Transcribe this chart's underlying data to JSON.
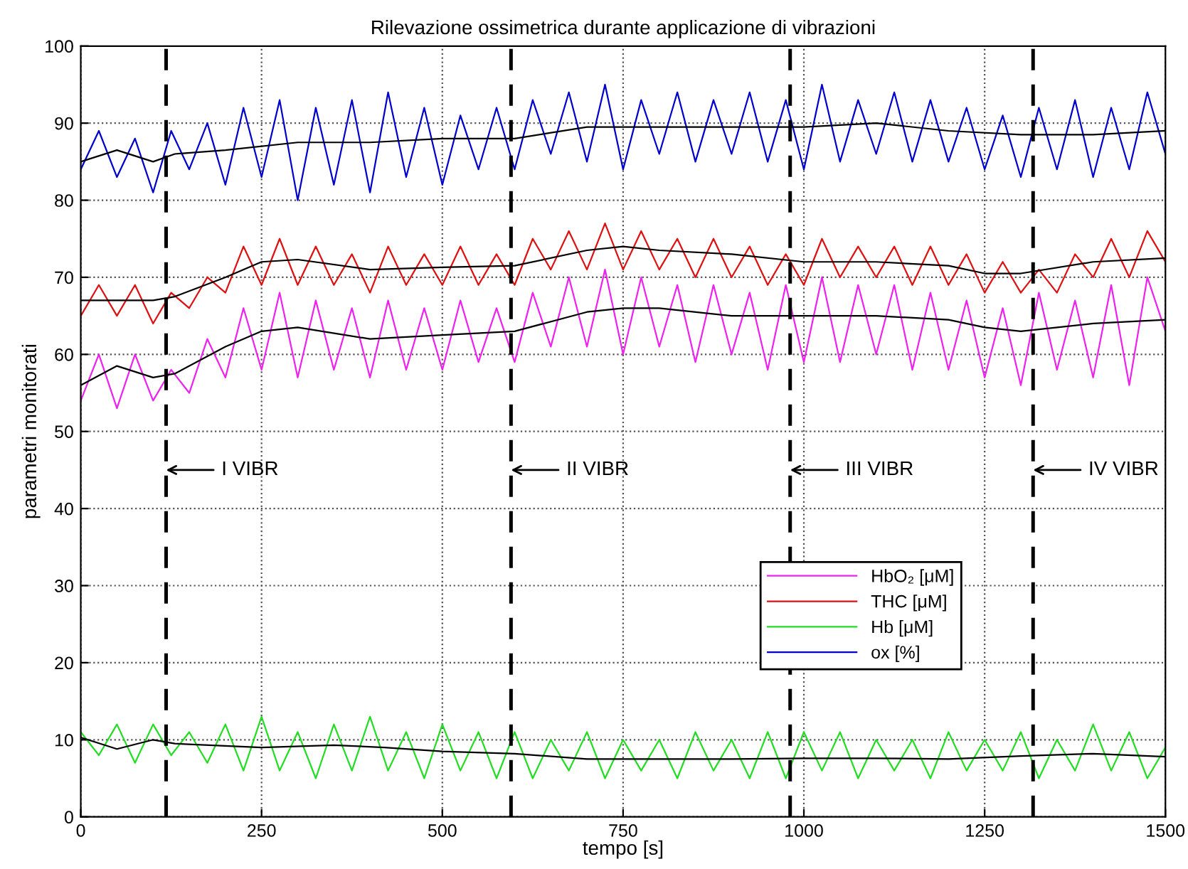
{
  "chart_data": {
    "type": "line",
    "title": "Rilevazione ossimetrica durante applicazione di vibrazioni",
    "xlabel": "tempo [s]",
    "ylabel": "parametri monitorati",
    "x": [
      0,
      25,
      50,
      75,
      100,
      125,
      150,
      175,
      200,
      225,
      250,
      275,
      300,
      325,
      350,
      375,
      400,
      425,
      450,
      475,
      500,
      525,
      550,
      575,
      600,
      625,
      650,
      675,
      700,
      725,
      750,
      775,
      800,
      825,
      850,
      875,
      900,
      925,
      950,
      975,
      1000,
      1025,
      1050,
      1075,
      1100,
      1125,
      1150,
      1175,
      1200,
      1225,
      1250,
      1275,
      1300,
      1325,
      1350,
      1375,
      1400,
      1425,
      1450,
      1475,
      1500
    ],
    "series": [
      {
        "name": "HbO₂ [μM]",
        "color": "#ee22ee",
        "values": [
          54,
          60,
          53,
          60,
          54,
          58,
          55,
          62,
          57,
          66,
          58,
          68,
          57,
          67,
          58,
          66,
          57,
          67,
          58,
          66,
          58,
          67,
          59,
          66,
          59,
          68,
          61,
          70,
          61,
          71,
          60,
          70,
          61,
          69,
          59,
          69,
          60,
          68,
          58,
          69,
          59,
          70,
          59,
          69,
          60,
          69,
          58,
          68,
          58,
          67,
          57,
          66,
          56,
          68,
          58,
          67,
          57,
          69,
          56,
          70,
          63
        ]
      },
      {
        "name": "THC [μM]",
        "color": "#dd1111",
        "values": [
          65,
          69,
          65,
          69,
          64,
          68,
          66,
          70,
          68,
          74,
          69,
          75,
          69,
          74,
          69,
          73,
          68,
          74,
          69,
          73,
          69,
          74,
          69,
          73,
          69,
          75,
          71,
          76,
          71,
          77,
          71,
          76,
          71,
          75,
          70,
          75,
          70,
          74,
          69,
          73,
          69,
          75,
          70,
          74,
          70,
          74,
          69,
          74,
          69,
          73,
          68,
          72,
          68,
          71,
          68,
          73,
          70,
          75,
          70,
          76,
          72
        ]
      },
      {
        "name": "Hb [μM]",
        "color": "#22dd22",
        "values": [
          11,
          8,
          12,
          7,
          12,
          8,
          11,
          7,
          12,
          6,
          13,
          6,
          11,
          5,
          12,
          6,
          13,
          6,
          11,
          5,
          12,
          6,
          11,
          5,
          11,
          5,
          10,
          6,
          11,
          5,
          10,
          6,
          10,
          5,
          11,
          6,
          10,
          5,
          11,
          5,
          11,
          6,
          11,
          5,
          10,
          6,
          10,
          5,
          11,
          6,
          10,
          6,
          11,
          5,
          10,
          6,
          12,
          6,
          11,
          5,
          9
        ]
      },
      {
        "name": "ox [%]",
        "color": "#0000cc",
        "values": [
          84,
          89,
          83,
          88,
          81,
          89,
          84,
          90,
          82,
          92,
          83,
          93,
          80,
          92,
          82,
          93,
          81,
          94,
          83,
          92,
          82,
          91,
          84,
          92,
          84,
          93,
          86,
          94,
          85,
          95,
          84,
          93,
          86,
          94,
          85,
          93,
          86,
          94,
          85,
          93,
          84,
          95,
          85,
          93,
          86,
          94,
          85,
          93,
          85,
          92,
          84,
          91,
          83,
          92,
          84,
          93,
          83,
          92,
          84,
          94,
          86
        ]
      },
      {
        "color": "#000000",
        "x": [
          0,
          50,
          100,
          130,
          200,
          250,
          300,
          400,
          500,
          600,
          700,
          750,
          800,
          900,
          1000,
          1100,
          1200,
          1250,
          1300,
          1400,
          1500
        ],
        "values": [
          56,
          58.5,
          57,
          57.5,
          61,
          63,
          63.5,
          62,
          62.5,
          63,
          65.5,
          66,
          66,
          65,
          65,
          65,
          64.5,
          63.5,
          63,
          64,
          64.5
        ]
      },
      {
        "color": "#000000",
        "x": [
          0,
          50,
          100,
          130,
          200,
          250,
          300,
          400,
          500,
          600,
          700,
          750,
          800,
          900,
          1000,
          1100,
          1200,
          1250,
          1300,
          1400,
          1500
        ],
        "values": [
          67,
          67,
          67,
          67.5,
          70,
          72,
          72.3,
          71,
          71.3,
          71.5,
          73.5,
          74,
          73.5,
          73,
          72,
          72,
          71.5,
          70.5,
          70.5,
          72,
          72.5
        ]
      },
      {
        "color": "#000000",
        "x": [
          0,
          50,
          100,
          130,
          250,
          350,
          420,
          500,
          600,
          700,
          800,
          900,
          1000,
          1100,
          1200,
          1300,
          1400,
          1500
        ],
        "values": [
          10.3,
          8.8,
          10,
          9.5,
          9,
          9.3,
          9,
          8.5,
          8.2,
          7.5,
          7.5,
          7.5,
          7.6,
          7.6,
          7.5,
          7.9,
          8.2,
          7.8
        ]
      },
      {
        "color": "#000000",
        "x": [
          0,
          50,
          100,
          130,
          200,
          300,
          400,
          500,
          600,
          700,
          800,
          900,
          1000,
          1100,
          1200,
          1300,
          1400,
          1500
        ],
        "values": [
          85,
          86.5,
          85,
          86,
          86.5,
          87.5,
          87.5,
          88,
          88,
          89.5,
          89.5,
          89.5,
          89.5,
          90,
          89,
          88.5,
          88.5,
          89
        ]
      }
    ],
    "ref_lines": [
      {
        "axis": "x",
        "value": 118,
        "label": "I VIBR",
        "color": "#000000",
        "line_style": "dashed"
      },
      {
        "axis": "x",
        "value": 595,
        "label": "II VIBR",
        "color": "#000000",
        "line_style": "dashed"
      },
      {
        "axis": "x",
        "value": 981,
        "label": "III VIBR",
        "color": "#000000",
        "line_style": "dashed"
      },
      {
        "axis": "x",
        "value": 1317,
        "label": "IV VIBR",
        "color": "#000000",
        "line_style": "dashed"
      }
    ],
    "xlim": [
      0,
      1500
    ],
    "xticks": [
      0,
      250,
      500,
      750,
      1000,
      1250,
      1500
    ],
    "ylim": [
      0,
      100
    ],
    "yticks": [
      0,
      10,
      20,
      30,
      40,
      50,
      60,
      70,
      80,
      90,
      100
    ],
    "grid": true,
    "legend": "bottom right",
    "line_style": "solid",
    "marker": "none"
  }
}
